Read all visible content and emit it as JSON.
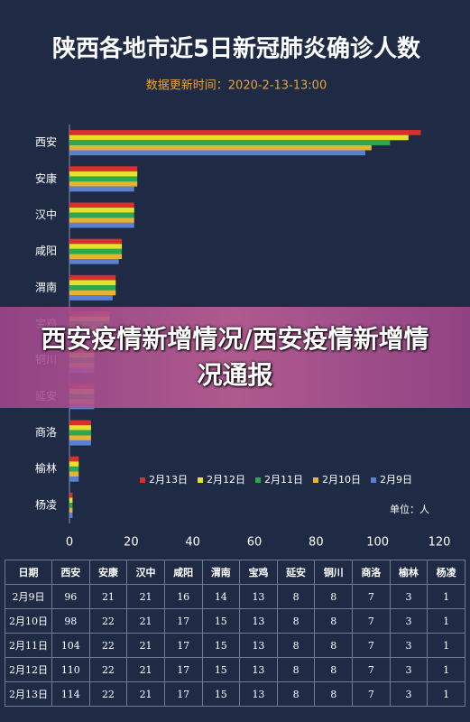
{
  "chart_data": {
    "type": "hbar",
    "title": "陕西各地市近5日新冠肺炎确诊人数",
    "subtitle": "数据更新时间：2020-2-13-13:00",
    "unit_label": "单位：人",
    "categories": [
      "西安",
      "安康",
      "汉中",
      "咸阳",
      "渭南",
      "宝鸡",
      "铜川",
      "延安",
      "商洛",
      "榆林",
      "杨凌"
    ],
    "series": [
      {
        "name": "2月13日",
        "color": "#d9302c",
        "values": [
          114,
          22,
          21,
          17,
          15,
          13,
          8,
          8,
          7,
          3,
          1
        ]
      },
      {
        "name": "2月12日",
        "color": "#e6e22c",
        "values": [
          110,
          22,
          21,
          17,
          15,
          13,
          8,
          8,
          7,
          3,
          1
        ]
      },
      {
        "name": "2月11日",
        "color": "#2ea84c",
        "values": [
          104,
          22,
          21,
          17,
          15,
          13,
          8,
          8,
          7,
          3,
          1
        ]
      },
      {
        "name": "2月10日",
        "color": "#e8b234",
        "values": [
          98,
          22,
          21,
          17,
          15,
          13,
          8,
          8,
          7,
          3,
          1
        ]
      },
      {
        "name": "2月9日",
        "color": "#5b80d2",
        "values": [
          96,
          21,
          21,
          16,
          14,
          13,
          8,
          8,
          7,
          3,
          1
        ]
      }
    ],
    "xlim": [
      0,
      120
    ],
    "xticks": [
      0,
      20,
      40,
      60,
      80,
      100,
      120
    ],
    "grid": false,
    "legend": "bottom-right"
  },
  "banner": "西安疫情新增情况/西安疫情新增情况通报",
  "table": {
    "header": [
      "日期",
      "西安",
      "安康",
      "汉中",
      "咸阳",
      "渭南",
      "宝鸡",
      "延安",
      "铜川",
      "商洛",
      "榆林",
      "杨凌"
    ],
    "rows": [
      [
        "2月9日",
        96,
        21,
        21,
        16,
        14,
        13,
        8,
        8,
        7,
        3,
        1
      ],
      [
        "2月10日",
        98,
        22,
        21,
        17,
        15,
        13,
        8,
        8,
        7,
        3,
        1
      ],
      [
        "2月11日",
        104,
        22,
        21,
        17,
        15,
        13,
        8,
        8,
        7,
        3,
        1
      ],
      [
        "2月12日",
        110,
        22,
        21,
        17,
        15,
        13,
        8,
        8,
        7,
        3,
        1
      ],
      [
        "2月13日",
        114,
        22,
        21,
        17,
        15,
        13,
        8,
        8,
        7,
        3,
        1
      ]
    ]
  }
}
